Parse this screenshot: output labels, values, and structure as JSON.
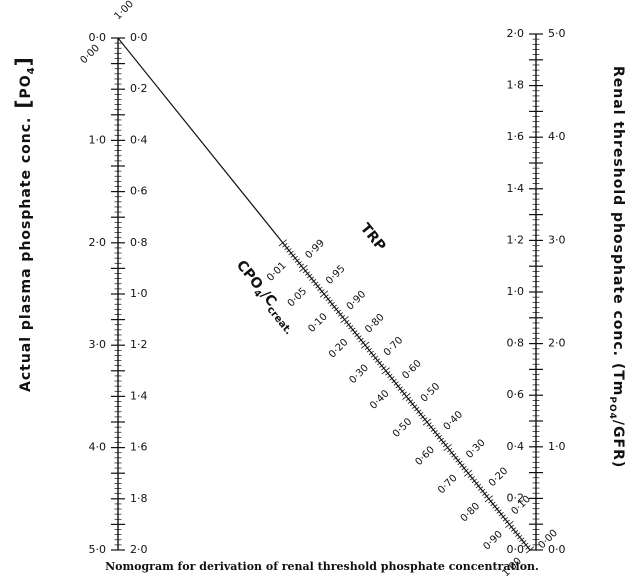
{
  "left_scale": {
    "title": "Actual plasma phosphate conc.",
    "title_symbol": "PO",
    "title_sub": "4",
    "outer_labels": [
      "0·0",
      "1·0",
      "2·0",
      "3·0",
      "4·0",
      "5·0"
    ],
    "inner_labels": [
      "0·0",
      "0·2",
      "0·4",
      "0·6",
      "0·8",
      "1·0",
      "1·2",
      "1·4",
      "1·6",
      "1·8",
      "2·0"
    ]
  },
  "right_scale": {
    "title": "Renal threshold phosphate conc.",
    "title_main": "Renal threshold phosphate conc. (Tm",
    "title_sub": "PO4",
    "title_end": "/GFR)",
    "outer_labels": [
      "5·0",
      "4·0",
      "3·0",
      "2·0",
      "1·0",
      "0·0"
    ],
    "inner_labels": [
      "2·0",
      "1·8",
      "1·6",
      "1·4",
      "1·2",
      "1·0",
      "0·8",
      "0·6",
      "0·4",
      "0·2",
      "0·0"
    ]
  },
  "diagonal_scale": {
    "trp_title": "TRP",
    "cpo4_title": "CPO",
    "cpo4_sub": "4",
    "cpo4_rest": "/C",
    "cpo4_sub2": "creat.",
    "top_end_labels": [
      "1·00",
      "0·00"
    ],
    "bottom_end_labels": [
      "0·00",
      "1·00"
    ],
    "trp_labels": [
      "0·99",
      "0·95",
      "0·90",
      "0·80",
      "0·70",
      "0·60",
      "0·50",
      "0·40",
      "0·30",
      "0·20",
      "0·10"
    ],
    "cpo4_labels": [
      "0·01",
      "0·05",
      "0·10",
      "0·20",
      "0·30",
      "0·40",
      "0·50",
      "0·60",
      "0·70",
      "0·80",
      "0·90"
    ]
  },
  "caption": "Nomogram for derivation of renal threshold phosphate concentration."
}
